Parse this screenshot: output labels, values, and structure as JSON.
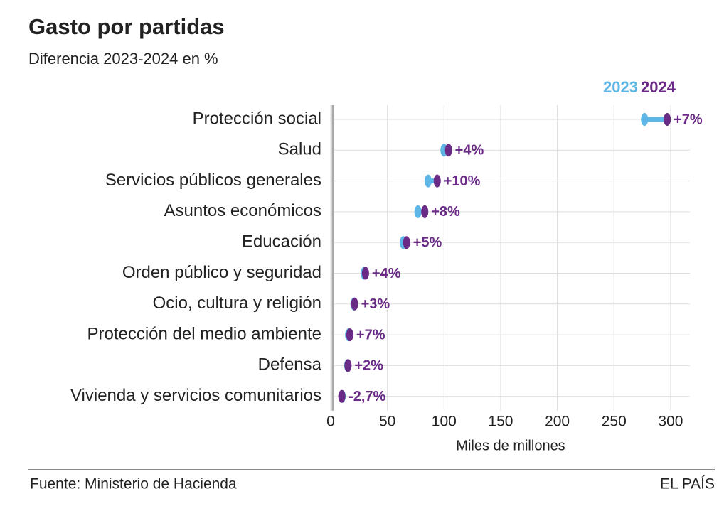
{
  "chart_data": {
    "type": "dumbbell",
    "title": "Gasto por partidas",
    "subtitle": "Diferencia 2023-2024 en %",
    "categories": [
      "Protección social",
      "Salud",
      "Servicios públicos generales",
      "Asuntos económicos",
      "Educación",
      "Orden público y seguridad",
      "Ocio, cultura y religión",
      "Protección del medio ambiente",
      "Defensa",
      "Vivienda y servicios comunitarios"
    ],
    "series": [
      {
        "name": "2023",
        "color": "#5db6e6",
        "values": [
          277,
          100,
          86,
          77,
          64,
          29.5,
          20.5,
          15.8,
          15,
          10.1
        ]
      },
      {
        "name": "2024",
        "color": "#6a2b86",
        "values": [
          297,
          104,
          94,
          83,
          67,
          30.7,
          21.1,
          16.9,
          15.3,
          9.8
        ]
      }
    ],
    "differences": {
      "values": [
        7,
        4,
        10,
        8,
        5,
        4,
        3,
        7,
        2,
        -2.7
      ],
      "value_labels": [
        "+7%",
        "+4%",
        "+10%",
        "+8%",
        "+5%",
        "+4%",
        "+3%",
        "+7%",
        "+2%",
        "-2,7%"
      ]
    },
    "xlabel": "Miles de millones",
    "xlim": [
      0,
      317
    ],
    "xticks": [
      0,
      50,
      100,
      150,
      200,
      250,
      300
    ],
    "grid": true,
    "source": "Fuente: Ministerio de Hacienda",
    "brand": "EL PAÍS"
  }
}
